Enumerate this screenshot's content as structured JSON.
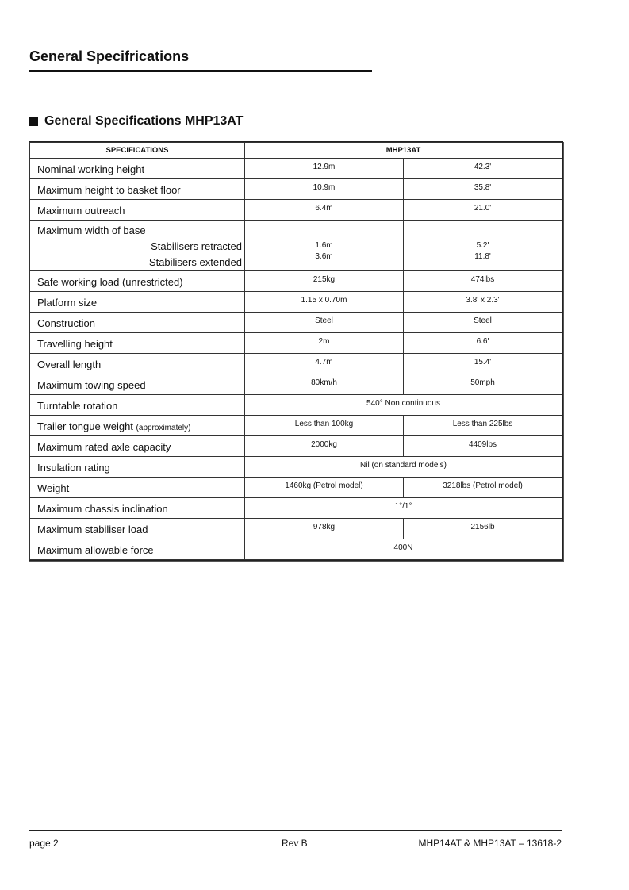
{
  "page": {
    "title": "General Specifrications",
    "section_title": "General Specifications MHP13AT"
  },
  "table": {
    "headers": [
      "SPECIFICATIONS",
      "MHP13AT"
    ],
    "rows": [
      {
        "label": "Nominal working height",
        "metric": "12.9m",
        "imperial": "42.3'"
      },
      {
        "label": "Maximum height to basket floor",
        "metric": "10.9m",
        "imperial": "35.8'"
      },
      {
        "label": "Maximum outreach",
        "metric": "6.4m",
        "imperial": "21.0'"
      },
      {
        "label": "Maximum width of base",
        "sublabels": [
          "Stabilisers retracted",
          "Stabilisers extended"
        ],
        "metric_list": [
          "1.6m",
          "3.6m"
        ],
        "imperial_list": [
          "5.2'",
          "11.8'"
        ]
      },
      {
        "label": "Safe working load (unrestricted)",
        "metric": "215kg",
        "imperial": "474lbs"
      },
      {
        "label": "Platform size",
        "metric": "1.15 x 0.70m",
        "imperial": "3.8' x 2.3'"
      },
      {
        "label": "Construction",
        "metric": "Steel",
        "imperial": "Steel"
      },
      {
        "label": "Travelling height",
        "metric": "2m",
        "imperial": "6.6'"
      },
      {
        "label": "Overall length",
        "metric": "4.7m",
        "imperial": "15.4'"
      },
      {
        "label": "Maximum towing speed",
        "metric": "80km/h",
        "imperial": "50mph"
      },
      {
        "label": "Turntable rotation",
        "span": "540° Non continuous"
      },
      {
        "label": "Trailer tongue weight",
        "label_note": "(approximately)",
        "metric": "Less than 100kg",
        "imperial": "Less than 225lbs"
      },
      {
        "label": "Maximum rated axle capacity",
        "metric": "2000kg",
        "imperial": "4409lbs"
      },
      {
        "label": "Insulation rating",
        "span": "Nil (on standard models)"
      },
      {
        "label": "Weight",
        "metric": "1460kg (Petrol model)",
        "imperial": "3218lbs (Petrol model)"
      },
      {
        "label": "Maximum chassis inclination",
        "span": "1°/1°"
      },
      {
        "label": "Maximum stabiliser load",
        "metric": "978kg",
        "imperial": "2156lb"
      },
      {
        "label": "Maximum allowable force",
        "span": "400N"
      }
    ]
  },
  "footer": {
    "page": "page 2",
    "revision": "Rev B",
    "document": "MHP14AT & MHP13AT – 13618-2"
  }
}
